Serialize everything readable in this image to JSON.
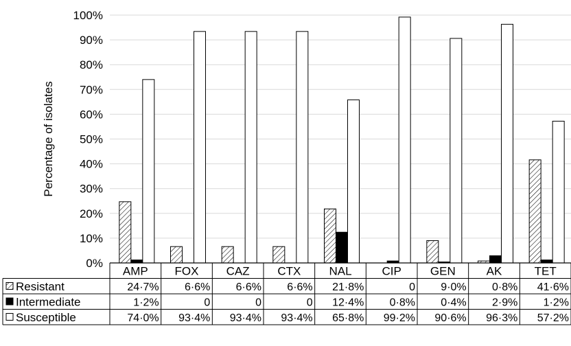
{
  "chart_data": {
    "type": "bar",
    "ylabel": "Percentage of isolates",
    "ylim": [
      0,
      100
    ],
    "y_ticks": [
      "0%",
      "10%",
      "20%",
      "30%",
      "40%",
      "50%",
      "60%",
      "70%",
      "80%",
      "90%",
      "100%"
    ],
    "grid": true,
    "categories": [
      "AMP",
      "FOX",
      "CAZ",
      "CTX",
      "NAL",
      "CIP",
      "GEN",
      "AK",
      "TET"
    ],
    "series": [
      {
        "name": "Resistant",
        "pattern": "hatched",
        "values": [
          24.7,
          6.6,
          6.6,
          6.6,
          21.8,
          0,
          9.0,
          0.8,
          41.6
        ],
        "labels": [
          "24·7%",
          "6·6%",
          "6·6%",
          "6·6%",
          "21·8%",
          "0",
          "9·0%",
          "0·8%",
          "41·6%"
        ]
      },
      {
        "name": "Intermediate",
        "pattern": "solid",
        "color": "#000000",
        "values": [
          1.2,
          0,
          0,
          0,
          12.4,
          0.8,
          0.4,
          2.9,
          1.2
        ],
        "labels": [
          "1·2%",
          "0",
          "0",
          "0",
          "12·4%",
          "0·8%",
          "0·4%",
          "2·9%",
          "1·2%"
        ]
      },
      {
        "name": "Susceptible",
        "pattern": "open",
        "color": "#ffffff",
        "values": [
          74.0,
          93.4,
          93.4,
          93.4,
          65.8,
          99.2,
          90.6,
          96.3,
          57.2
        ],
        "labels": [
          "74·0%",
          "93·4%",
          "93·4%",
          "93·4%",
          "65·8%",
          "99·2%",
          "90·6%",
          "96·3%",
          "57·2%"
        ]
      }
    ],
    "legend": "data-table-below"
  }
}
